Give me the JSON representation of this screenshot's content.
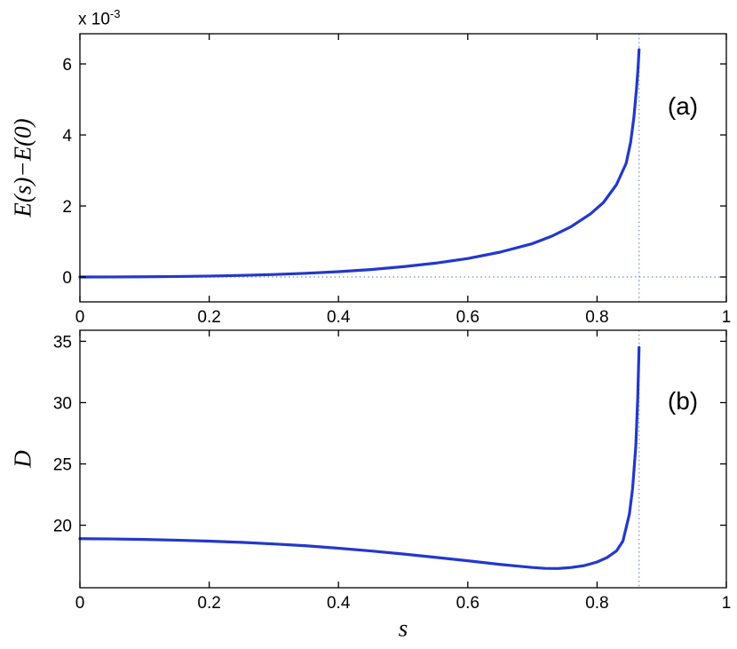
{
  "figure": {
    "background": "#ffffff",
    "curve_color": "#2338cc",
    "dotted_color": "#8a9bd4",
    "axis_color": "#000000"
  },
  "labels": {
    "exponent_prefix": "x 10",
    "exponent_sup": "-3",
    "ylabel_a": "E(s)−E(0)",
    "ylabel_b": "D",
    "xlabel": "s",
    "tag_a": "(a)",
    "tag_b": "(b)"
  },
  "chart_data": [
    {
      "type": "line",
      "title": "",
      "xlabel": "",
      "ylabel": "E(s)-E(0)",
      "y_unit_multiplier": "x 10^-3",
      "annotation": "(a)",
      "xlim": [
        0,
        1
      ],
      "ylim": [
        -0.0007,
        0.00685
      ],
      "x_ticks": [
        0,
        0.2,
        0.4,
        0.6,
        0.8,
        1
      ],
      "x_tick_labels": [
        "0",
        "0.2",
        "0.4",
        "0.6",
        "0.8",
        "1"
      ],
      "y_ticks": [
        0,
        0.002,
        0.004,
        0.006
      ],
      "y_tick_labels": [
        "0",
        "2",
        "4",
        "6"
      ],
      "grid": false,
      "legend": "none",
      "reference_lines": {
        "horizontal_y": 0,
        "vertical_x": 0.865
      },
      "series": [
        {
          "name": "E(s)-E(0)",
          "x": [
            0,
            0.05,
            0.1,
            0.15,
            0.2,
            0.25,
            0.3,
            0.35,
            0.4,
            0.45,
            0.5,
            0.55,
            0.6,
            0.65,
            0.7,
            0.73,
            0.76,
            0.79,
            0.81,
            0.83,
            0.845,
            0.852,
            0.857,
            0.861,
            0.8635,
            0.865
          ],
          "y": [
            0,
            2e-06,
            6e-06,
            1.4e-05,
            2.6e-05,
            4.5e-05,
            7e-05,
            0.000105,
            0.00015,
            0.00021,
            0.00029,
            0.00039,
            0.00052,
            0.0007,
            0.00094,
            0.00115,
            0.00142,
            0.00178,
            0.0021,
            0.0026,
            0.0032,
            0.0038,
            0.0045,
            0.0053,
            0.0059,
            0.0064
          ]
        }
      ]
    },
    {
      "type": "line",
      "title": "",
      "xlabel": "s",
      "ylabel": "D",
      "annotation": "(b)",
      "xlim": [
        0,
        1
      ],
      "ylim": [
        14.9,
        35.9
      ],
      "x_ticks": [
        0,
        0.2,
        0.4,
        0.6,
        0.8,
        1
      ],
      "x_tick_labels": [
        "0",
        "0.2",
        "0.4",
        "0.6",
        "0.8",
        "1"
      ],
      "y_ticks": [
        20,
        25,
        30,
        35
      ],
      "y_tick_labels": [
        "20",
        "25",
        "30",
        "35"
      ],
      "grid": false,
      "legend": "none",
      "reference_lines": {
        "vertical_x": 0.865
      },
      "series": [
        {
          "name": "D",
          "x": [
            0,
            0.05,
            0.1,
            0.15,
            0.2,
            0.25,
            0.3,
            0.35,
            0.4,
            0.45,
            0.5,
            0.55,
            0.6,
            0.65,
            0.68,
            0.7,
            0.72,
            0.74,
            0.76,
            0.78,
            0.8,
            0.815,
            0.83,
            0.84,
            0.85,
            0.855,
            0.86,
            0.863,
            0.865
          ],
          "y": [
            18.9,
            18.88,
            18.84,
            18.78,
            18.7,
            18.6,
            18.47,
            18.32,
            18.12,
            17.9,
            17.65,
            17.38,
            17.1,
            16.8,
            16.65,
            16.55,
            16.48,
            16.47,
            16.55,
            16.7,
            17.0,
            17.35,
            17.9,
            18.7,
            20.9,
            23.0,
            26.5,
            30.5,
            34.5
          ]
        }
      ]
    }
  ],
  "layout_note": ""
}
